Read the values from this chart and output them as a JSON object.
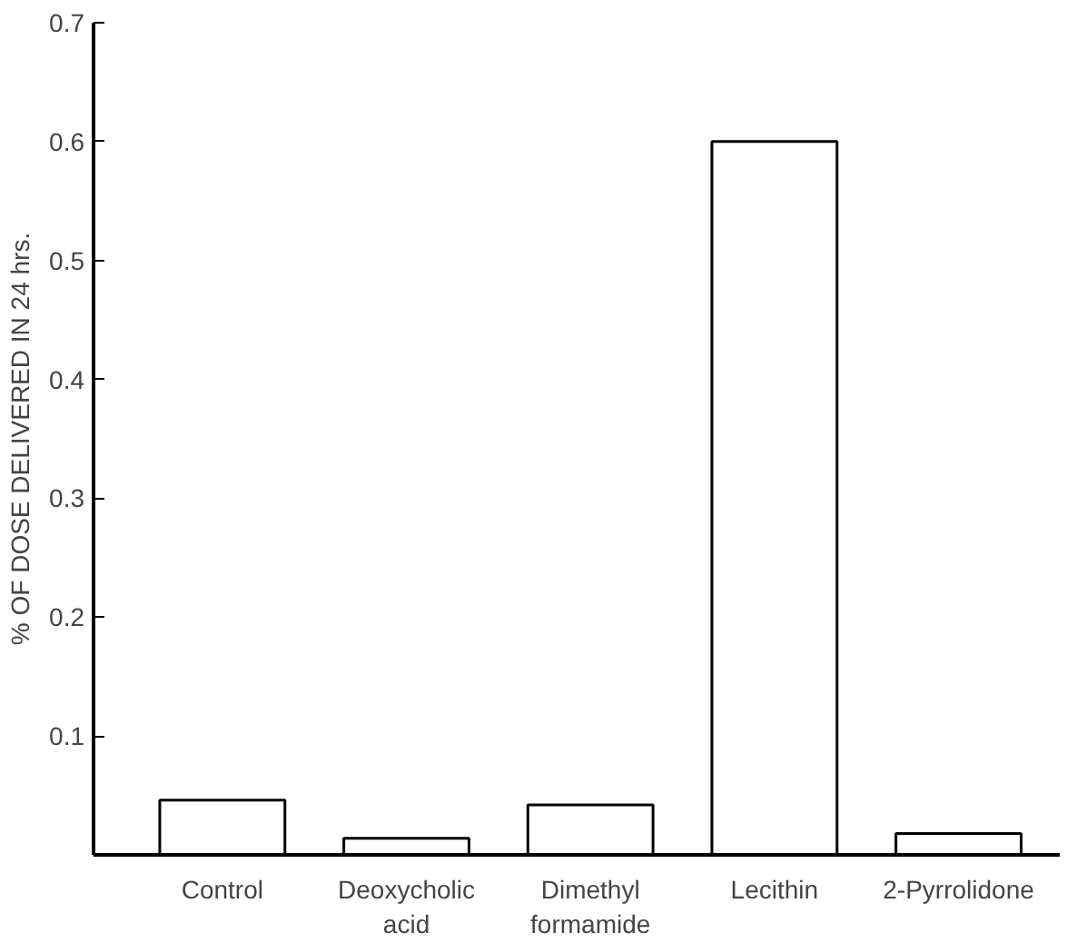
{
  "chart_data": {
    "type": "bar",
    "ylabel": "% OF DOSE DELIVERED IN 24 hrs.",
    "categories": [
      "Control",
      "Deoxycholic\nacid",
      "Dimethyl\nformamide",
      "Lecithin",
      "2-Pyrrolidone"
    ],
    "values": [
      0.046,
      0.014,
      0.042,
      0.6,
      0.018
    ],
    "color": "#ffffff",
    "ylim": [
      0,
      0.7
    ],
    "yticks": [
      0.1,
      0.2,
      0.3,
      0.4,
      0.5,
      0.6,
      0.7
    ],
    "grid": false
  }
}
